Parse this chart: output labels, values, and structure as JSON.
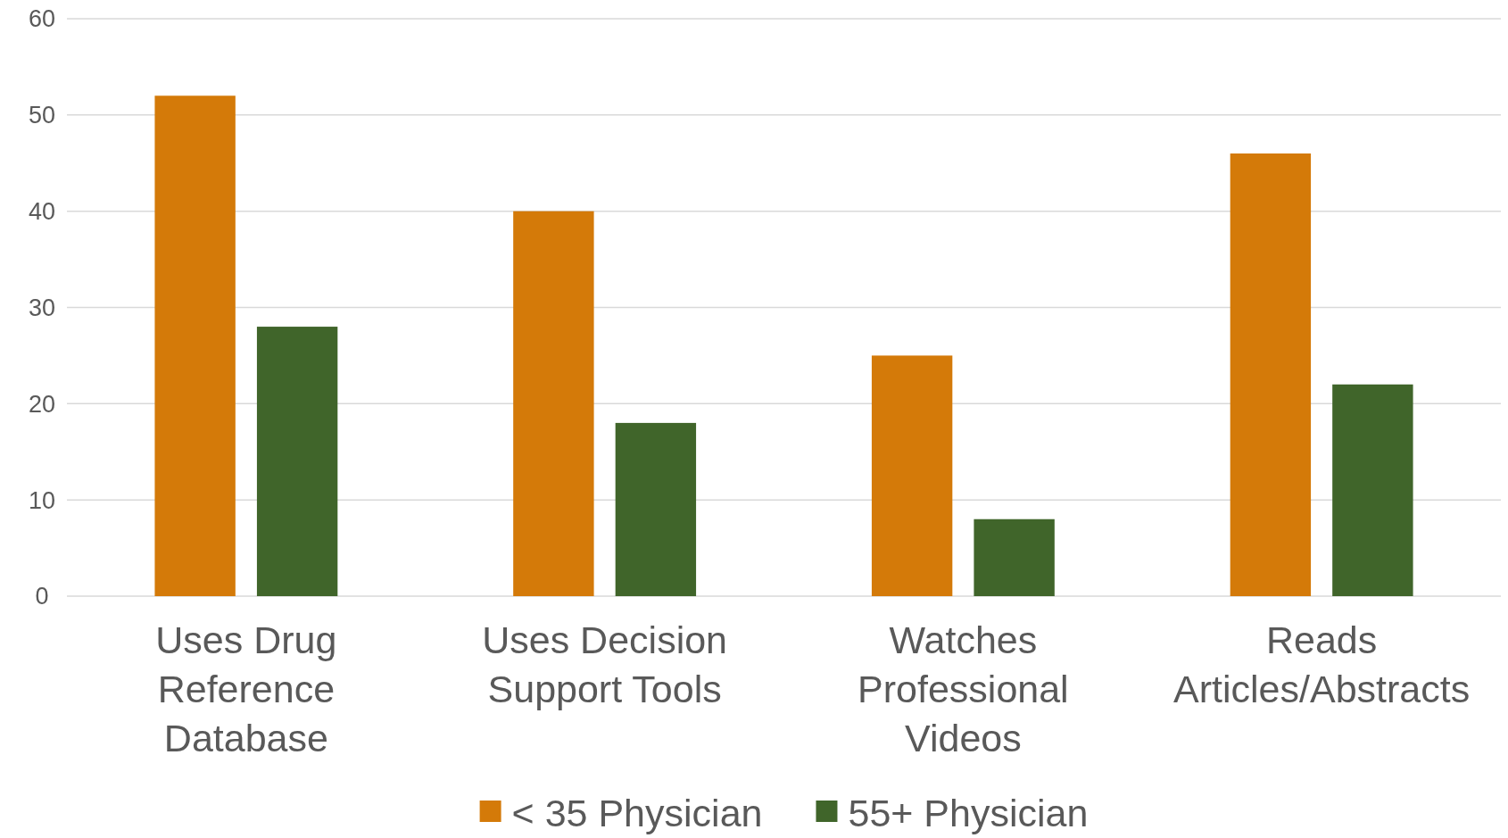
{
  "chart_data": {
    "type": "bar",
    "categories": [
      "Uses Drug Reference Database",
      "Uses Decision Support Tools",
      "Watches Professional Videos",
      "Reads Articles/Abstracts"
    ],
    "series": [
      {
        "name": "< 35 Physician",
        "color": "#d47a09",
        "values": [
          52,
          40,
          25,
          46
        ]
      },
      {
        "name": "55+ Physician",
        "color": "#40652a",
        "values": [
          28,
          18,
          8,
          22
        ]
      }
    ],
    "ylim": [
      0,
      60
    ],
    "yticks": [
      0,
      10,
      20,
      30,
      40,
      50,
      60
    ],
    "grid": "y",
    "legend": "bottom"
  }
}
